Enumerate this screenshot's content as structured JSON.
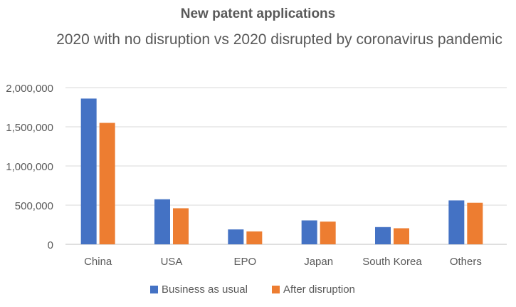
{
  "chart_data": {
    "type": "bar",
    "title": "New patent applications",
    "subtitle": "2020 with no disruption vs 2020 disrupted by coronavirus pandemic",
    "categories": [
      "China",
      "USA",
      "EPO",
      "Japan",
      "South Korea",
      "Others"
    ],
    "series": [
      {
        "name": "Business as usual",
        "color": "#4472C4",
        "values": [
          1860000,
          575000,
          190000,
          305000,
          220000,
          560000
        ]
      },
      {
        "name": "After disruption",
        "color": "#ED7D31",
        "values": [
          1550000,
          460000,
          165000,
          290000,
          205000,
          530000
        ]
      }
    ],
    "ylim": [
      0,
      2000000
    ],
    "yticks": [
      0,
      500000,
      1000000,
      1500000,
      2000000
    ],
    "ytick_labels": [
      "0",
      "500,000",
      "1,000,000",
      "1,500,000",
      "2,000,000"
    ],
    "grid": true,
    "legend_position": "bottom",
    "xlabel": "",
    "ylabel": ""
  }
}
